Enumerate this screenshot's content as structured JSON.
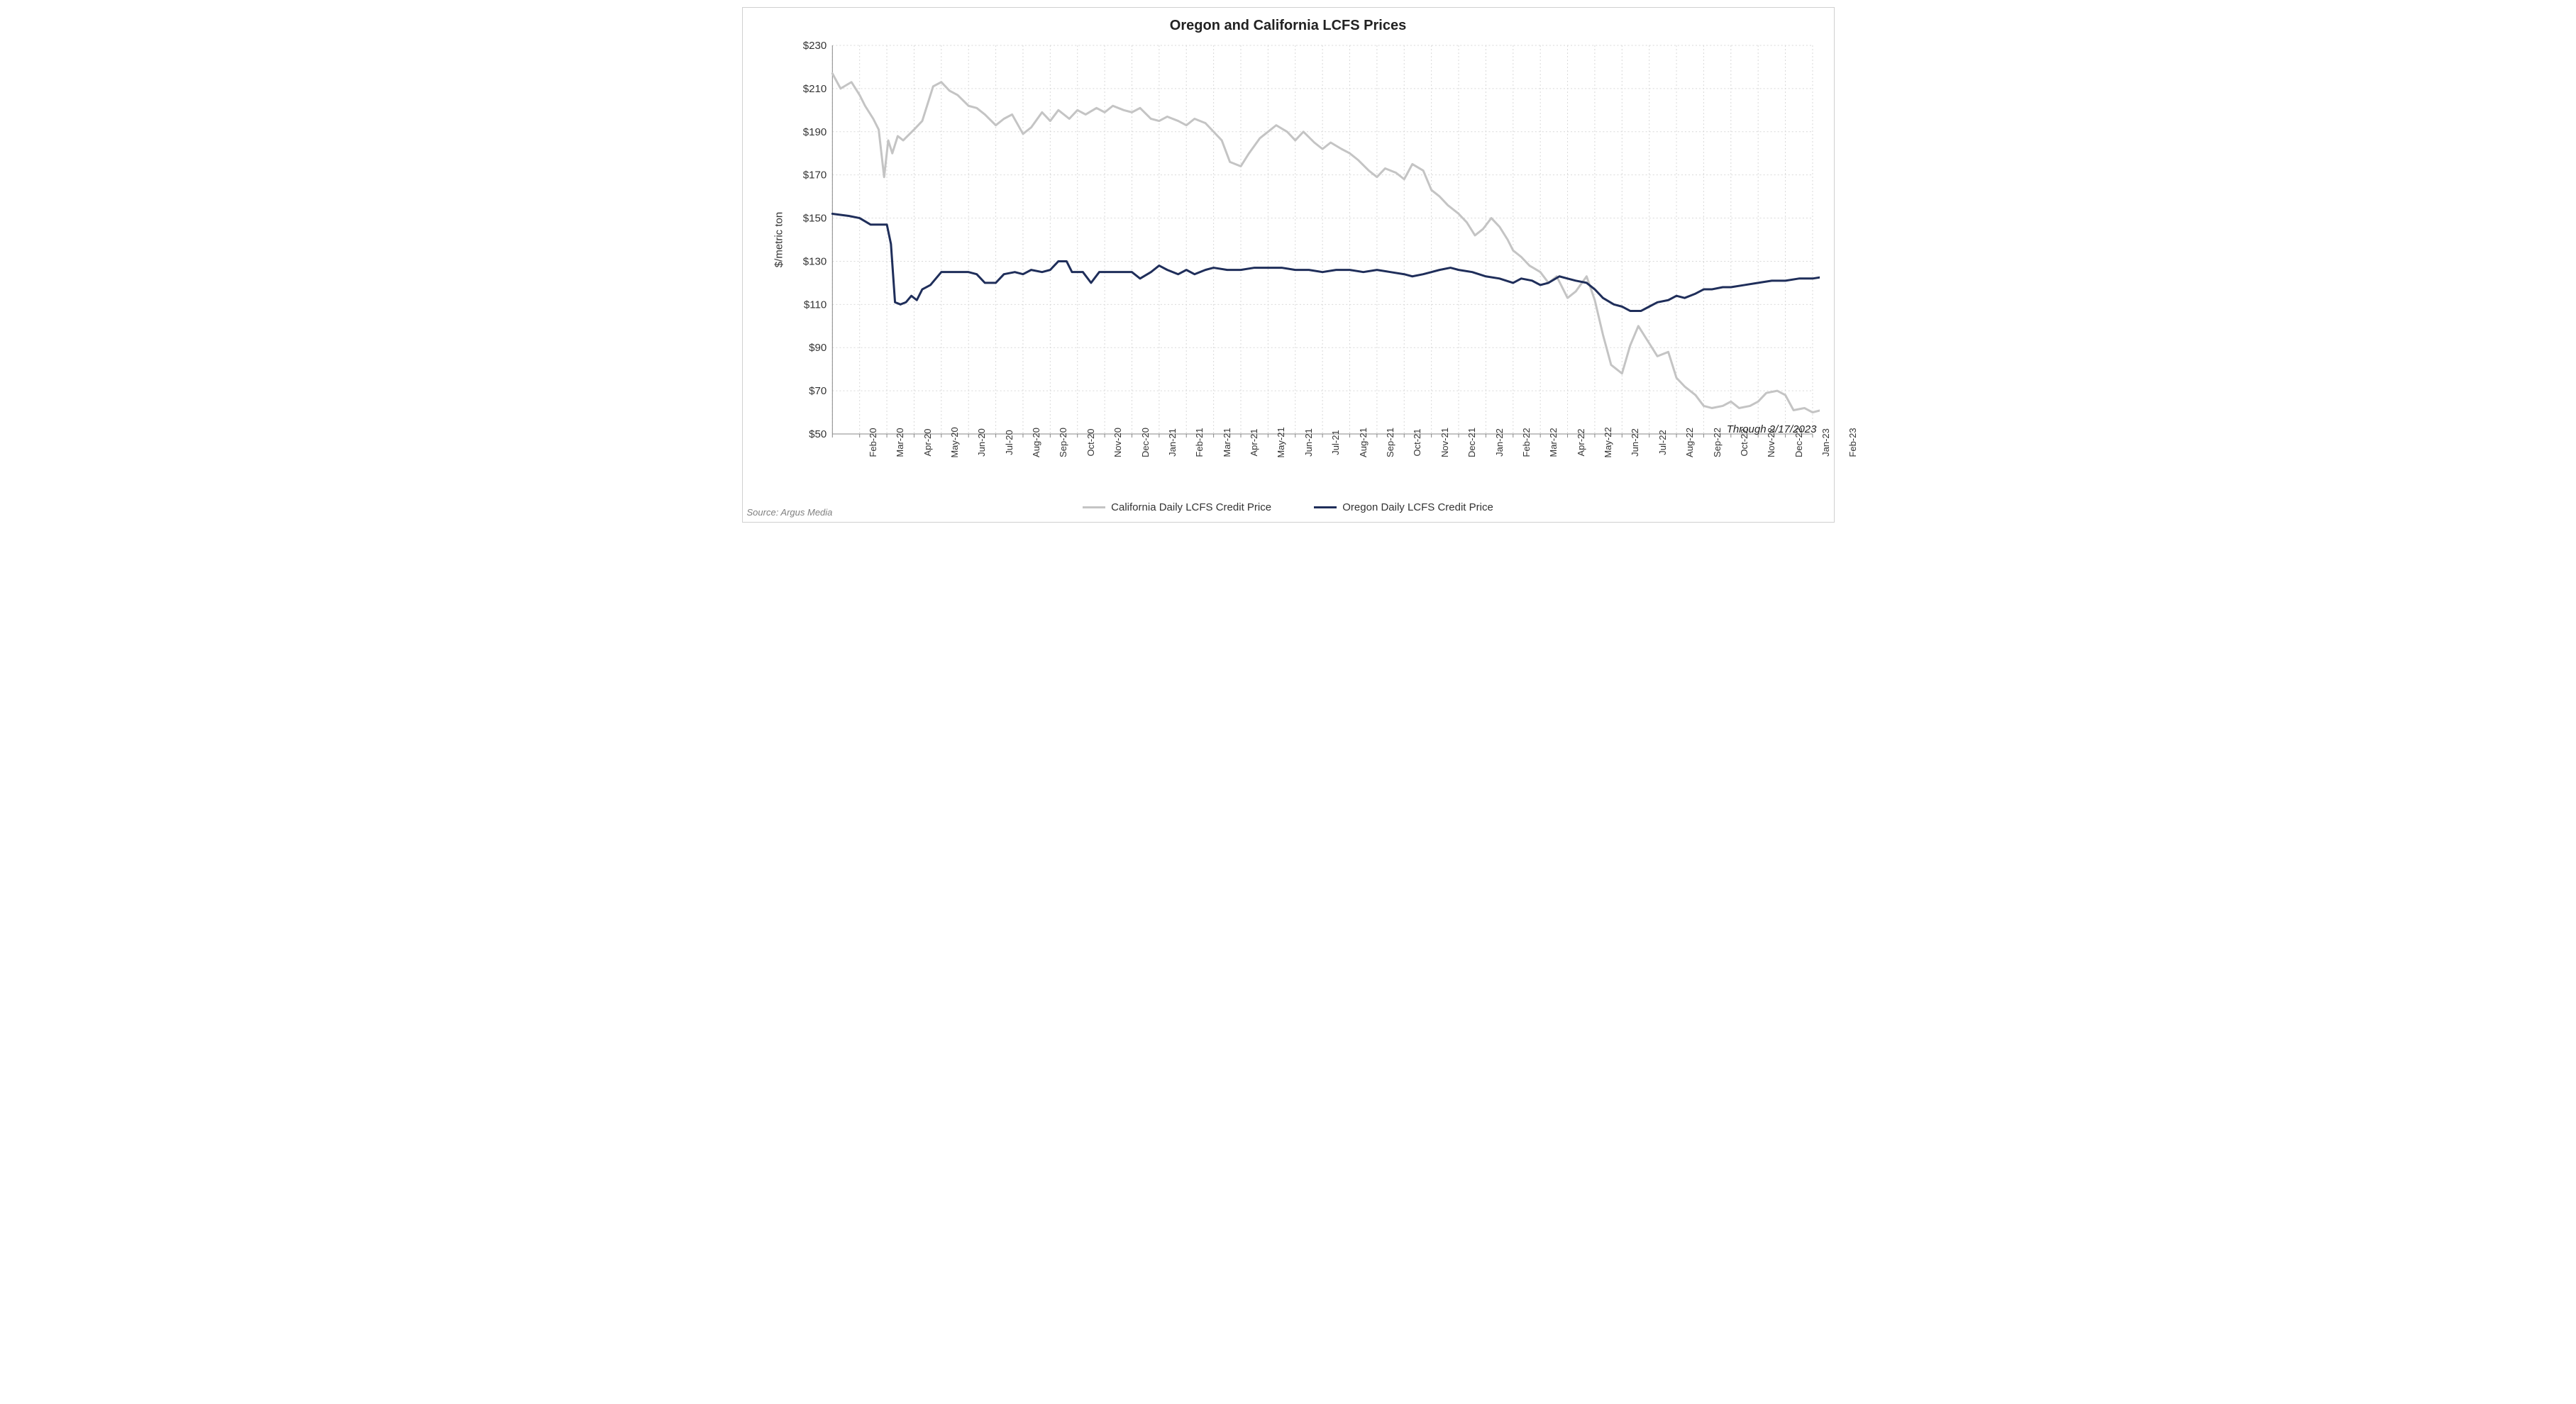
{
  "chart": {
    "type": "line",
    "title": "Oregon and California LCFS Prices",
    "y_axis_title": "$/metric ton",
    "through_note": "Through 2/17/2023",
    "source": "Source: Argus Media",
    "background_color": "#ffffff",
    "border_color": "#d0d0d0",
    "grid_color": "#d9d9d9",
    "axis_line_color": "#888888",
    "title_fontsize": 20,
    "label_fontsize": 15,
    "tick_fontsize": 13,
    "ylim": [
      50,
      230
    ],
    "ytick_step": 20,
    "ytick_prefix": "$",
    "x_labels": [
      "Feb-20",
      "Mar-20",
      "Apr-20",
      "May-20",
      "Jun-20",
      "Jul-20",
      "Aug-20",
      "Sep-20",
      "Oct-20",
      "Nov-20",
      "Dec-20",
      "Jan-21",
      "Feb-21",
      "Mar-21",
      "Apr-21",
      "May-21",
      "Jun-21",
      "Jul-21",
      "Aug-21",
      "Sep-21",
      "Oct-21",
      "Nov-21",
      "Dec-21",
      "Jan-22",
      "Feb-22",
      "Mar-22",
      "Apr-22",
      "May-22",
      "Jun-22",
      "Jul-22",
      "Aug-22",
      "Sep-22",
      "Oct-22",
      "Nov-22",
      "Dec-22",
      "Jan-23",
      "Feb-23"
    ],
    "series": [
      {
        "name": "California Daily LCFS Credit Price",
        "color": "#c4c4c4",
        "line_width": 3,
        "data": [
          [
            0,
            217
          ],
          [
            0.3,
            210
          ],
          [
            0.7,
            213
          ],
          [
            1.0,
            207
          ],
          [
            1.2,
            202
          ],
          [
            1.5,
            196
          ],
          [
            1.7,
            191
          ],
          [
            1.9,
            169
          ],
          [
            2.05,
            186
          ],
          [
            2.2,
            180
          ],
          [
            2.4,
            188
          ],
          [
            2.6,
            186
          ],
          [
            3.0,
            191
          ],
          [
            3.3,
            195
          ],
          [
            3.7,
            211
          ],
          [
            4.0,
            213
          ],
          [
            4.3,
            209
          ],
          [
            4.6,
            207
          ],
          [
            5.0,
            202
          ],
          [
            5.3,
            201
          ],
          [
            5.6,
            198
          ],
          [
            6.0,
            193
          ],
          [
            6.3,
            196
          ],
          [
            6.6,
            198
          ],
          [
            7.0,
            189
          ],
          [
            7.3,
            192
          ],
          [
            7.7,
            199
          ],
          [
            8.0,
            195
          ],
          [
            8.3,
            200
          ],
          [
            8.7,
            196
          ],
          [
            9.0,
            200
          ],
          [
            9.3,
            198
          ],
          [
            9.7,
            201
          ],
          [
            10.0,
            199
          ],
          [
            10.3,
            202
          ],
          [
            10.7,
            200
          ],
          [
            11.0,
            199
          ],
          [
            11.3,
            201
          ],
          [
            11.7,
            196
          ],
          [
            12.0,
            195
          ],
          [
            12.3,
            197
          ],
          [
            12.7,
            195
          ],
          [
            13.0,
            193
          ],
          [
            13.3,
            196
          ],
          [
            13.7,
            194
          ],
          [
            14.0,
            190
          ],
          [
            14.3,
            186
          ],
          [
            14.6,
            176
          ],
          [
            15.0,
            174
          ],
          [
            15.3,
            180
          ],
          [
            15.7,
            187
          ],
          [
            16.0,
            190
          ],
          [
            16.3,
            193
          ],
          [
            16.7,
            190
          ],
          [
            17.0,
            186
          ],
          [
            17.3,
            190
          ],
          [
            17.7,
            185
          ],
          [
            18.0,
            182
          ],
          [
            18.3,
            185
          ],
          [
            18.7,
            182
          ],
          [
            19.0,
            180
          ],
          [
            19.3,
            177
          ],
          [
            19.7,
            172
          ],
          [
            20.0,
            169
          ],
          [
            20.3,
            173
          ],
          [
            20.7,
            171
          ],
          [
            21.0,
            168
          ],
          [
            21.3,
            175
          ],
          [
            21.7,
            172
          ],
          [
            22.0,
            163
          ],
          [
            22.3,
            160
          ],
          [
            22.6,
            156
          ],
          [
            23.0,
            152
          ],
          [
            23.3,
            148
          ],
          [
            23.6,
            142
          ],
          [
            23.9,
            145
          ],
          [
            24.2,
            150
          ],
          [
            24.5,
            146
          ],
          [
            24.8,
            140
          ],
          [
            25.0,
            135
          ],
          [
            25.3,
            132
          ],
          [
            25.6,
            128
          ],
          [
            26.0,
            125
          ],
          [
            26.3,
            120
          ],
          [
            26.6,
            123
          ],
          [
            27.0,
            113
          ],
          [
            27.3,
            116
          ],
          [
            27.7,
            123
          ],
          [
            28.0,
            112
          ],
          [
            28.3,
            96
          ],
          [
            28.6,
            82
          ],
          [
            29.0,
            78
          ],
          [
            29.3,
            91
          ],
          [
            29.6,
            100
          ],
          [
            30.0,
            92
          ],
          [
            30.3,
            86
          ],
          [
            30.7,
            88
          ],
          [
            31.0,
            76
          ],
          [
            31.3,
            72
          ],
          [
            31.7,
            68
          ],
          [
            32.0,
            63
          ],
          [
            32.3,
            62
          ],
          [
            32.7,
            63
          ],
          [
            33.0,
            65
          ],
          [
            33.3,
            62
          ],
          [
            33.7,
            63
          ],
          [
            34.0,
            65
          ],
          [
            34.3,
            69
          ],
          [
            34.7,
            70
          ],
          [
            35.0,
            68
          ],
          [
            35.3,
            61
          ],
          [
            35.7,
            62
          ],
          [
            36.0,
            60
          ],
          [
            36.3,
            61
          ],
          [
            36.6,
            66
          ],
          [
            36.8,
            66
          ]
        ]
      },
      {
        "name": "Oregon Daily LCFS Credit Price",
        "color": "#1f2e5a",
        "line_width": 3,
        "data": [
          [
            0,
            152
          ],
          [
            0.6,
            151
          ],
          [
            1.0,
            150
          ],
          [
            1.4,
            147
          ],
          [
            1.8,
            147
          ],
          [
            2.0,
            147
          ],
          [
            2.15,
            138
          ],
          [
            2.3,
            111
          ],
          [
            2.5,
            110
          ],
          [
            2.7,
            111
          ],
          [
            2.9,
            114
          ],
          [
            3.1,
            112
          ],
          [
            3.3,
            117
          ],
          [
            3.6,
            119
          ],
          [
            4.0,
            125
          ],
          [
            4.4,
            125
          ],
          [
            5.0,
            125
          ],
          [
            5.3,
            124
          ],
          [
            5.6,
            120
          ],
          [
            6.0,
            120
          ],
          [
            6.3,
            124
          ],
          [
            6.7,
            125
          ],
          [
            7.0,
            124
          ],
          [
            7.3,
            126
          ],
          [
            7.7,
            125
          ],
          [
            8.0,
            126
          ],
          [
            8.3,
            130
          ],
          [
            8.6,
            130
          ],
          [
            8.8,
            125
          ],
          [
            9.2,
            125
          ],
          [
            9.5,
            120
          ],
          [
            9.8,
            125
          ],
          [
            10.0,
            125
          ],
          [
            10.5,
            125
          ],
          [
            11.0,
            125
          ],
          [
            11.3,
            122
          ],
          [
            11.7,
            125
          ],
          [
            12.0,
            128
          ],
          [
            12.3,
            126
          ],
          [
            12.7,
            124
          ],
          [
            13.0,
            126
          ],
          [
            13.3,
            124
          ],
          [
            13.7,
            126
          ],
          [
            14.0,
            127
          ],
          [
            14.5,
            126
          ],
          [
            15.0,
            126
          ],
          [
            15.5,
            127
          ],
          [
            16.0,
            127
          ],
          [
            16.5,
            127
          ],
          [
            17.0,
            126
          ],
          [
            17.5,
            126
          ],
          [
            18.0,
            125
          ],
          [
            18.5,
            126
          ],
          [
            19.0,
            126
          ],
          [
            19.5,
            125
          ],
          [
            20.0,
            126
          ],
          [
            20.5,
            125
          ],
          [
            21.0,
            124
          ],
          [
            21.3,
            123
          ],
          [
            21.7,
            124
          ],
          [
            22.0,
            125
          ],
          [
            22.3,
            126
          ],
          [
            22.7,
            127
          ],
          [
            23.0,
            126
          ],
          [
            23.5,
            125
          ],
          [
            24.0,
            123
          ],
          [
            24.5,
            122
          ],
          [
            25.0,
            120
          ],
          [
            25.3,
            122
          ],
          [
            25.7,
            121
          ],
          [
            26.0,
            119
          ],
          [
            26.3,
            120
          ],
          [
            26.7,
            123
          ],
          [
            27.0,
            122
          ],
          [
            27.3,
            121
          ],
          [
            27.7,
            120
          ],
          [
            28.0,
            117
          ],
          [
            28.3,
            113
          ],
          [
            28.7,
            110
          ],
          [
            29.0,
            109
          ],
          [
            29.3,
            107
          ],
          [
            29.7,
            107
          ],
          [
            30.0,
            109
          ],
          [
            30.3,
            111
          ],
          [
            30.7,
            112
          ],
          [
            31.0,
            114
          ],
          [
            31.3,
            113
          ],
          [
            31.7,
            115
          ],
          [
            32.0,
            117
          ],
          [
            32.3,
            117
          ],
          [
            32.7,
            118
          ],
          [
            33.0,
            118
          ],
          [
            33.5,
            119
          ],
          [
            34.0,
            120
          ],
          [
            34.5,
            121
          ],
          [
            35.0,
            121
          ],
          [
            35.5,
            122
          ],
          [
            36.0,
            122
          ],
          [
            36.5,
            123
          ],
          [
            36.8,
            123
          ]
        ]
      }
    ]
  }
}
